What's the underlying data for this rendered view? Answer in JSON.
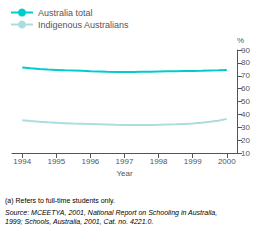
{
  "chart_data": {
    "type": "line",
    "x": [
      1994,
      1994.25,
      1994.5,
      1994.75,
      1995,
      1995.25,
      1995.5,
      1995.75,
      1996,
      1996.25,
      1996.5,
      1996.75,
      1997,
      1997.25,
      1997.5,
      1997.75,
      1998,
      1998.25,
      1998.5,
      1998.75,
      1999,
      1999.25,
      1999.5,
      1999.75,
      2000
    ],
    "series": [
      {
        "name": "Australia total",
        "color": "#00cccc",
        "values": [
          76.5,
          75.8,
          75.2,
          74.8,
          74.5,
          74.2,
          74.0,
          73.8,
          73.5,
          73.3,
          73.1,
          73.0,
          73.0,
          73.0,
          73.1,
          73.2,
          73.3,
          73.4,
          73.5,
          73.6,
          73.7,
          73.8,
          74.0,
          74.2,
          74.5
        ]
      },
      {
        "name": "Indigenous Australians",
        "color": "#aadddd",
        "values": [
          35.5,
          34.8,
          34.2,
          33.8,
          33.5,
          33.2,
          32.9,
          32.7,
          32.5,
          32.3,
          32.1,
          31.9,
          31.8,
          31.7,
          31.7,
          31.8,
          31.9,
          32.1,
          32.3,
          32.6,
          32.9,
          33.5,
          34.2,
          35.0,
          36.5
        ]
      }
    ],
    "xlabel": "Year",
    "ylabel": "%",
    "xlim": [
      1993.7,
      2000.3
    ],
    "xticks": [
      1994,
      1995,
      1996,
      1997,
      1998,
      1999,
      2000
    ],
    "ylim": [
      10,
      90
    ],
    "yticks": [
      10,
      20,
      30,
      40,
      50,
      60,
      70,
      80,
      90
    ],
    "grid": false,
    "legend": "upper left",
    "annotations": [
      "(a) Refers to full-time students only.",
      "Source: MCEETYA, 2001, National Report on Schooling in Australia,\n1999; Schools, Australia, 2001, Cat. no. 4221.0."
    ]
  }
}
